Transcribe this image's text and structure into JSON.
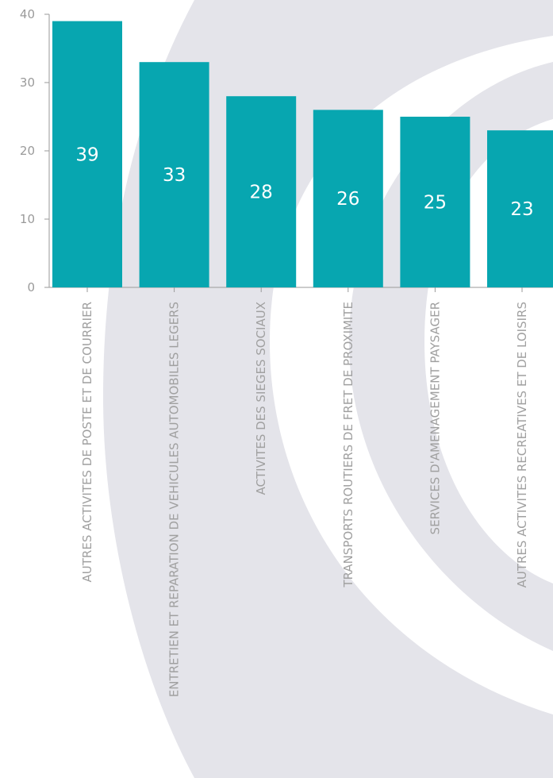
{
  "chart_data": {
    "type": "bar",
    "title": "",
    "xlabel": "",
    "ylabel": "",
    "ylim": [
      0,
      40
    ],
    "yticks": [
      0,
      10,
      20,
      30,
      40
    ],
    "grid": false,
    "bar_color": "#07a6b0",
    "axis_color": "#9a9a9a",
    "background_art_color": "#e4e4ea",
    "categories": [
      "AUTRES ACTIVITES DE POSTE ET DE COURRIER",
      "ENTRETIEN ET REPARATION DE VEHICULES AUTOMOBILES LEGERS",
      "ACTIVITES DES SIEGES SOCIAUX",
      "TRANSPORTS ROUTIERS DE FRET DE PROXIMITE",
      "SERVICES D'AMENAGEMENT PAYSAGER",
      "AUTRES ACTIVITES RECREATIVES ET DE LOISIRS"
    ],
    "values": [
      39,
      33,
      28,
      26,
      25,
      23
    ]
  }
}
